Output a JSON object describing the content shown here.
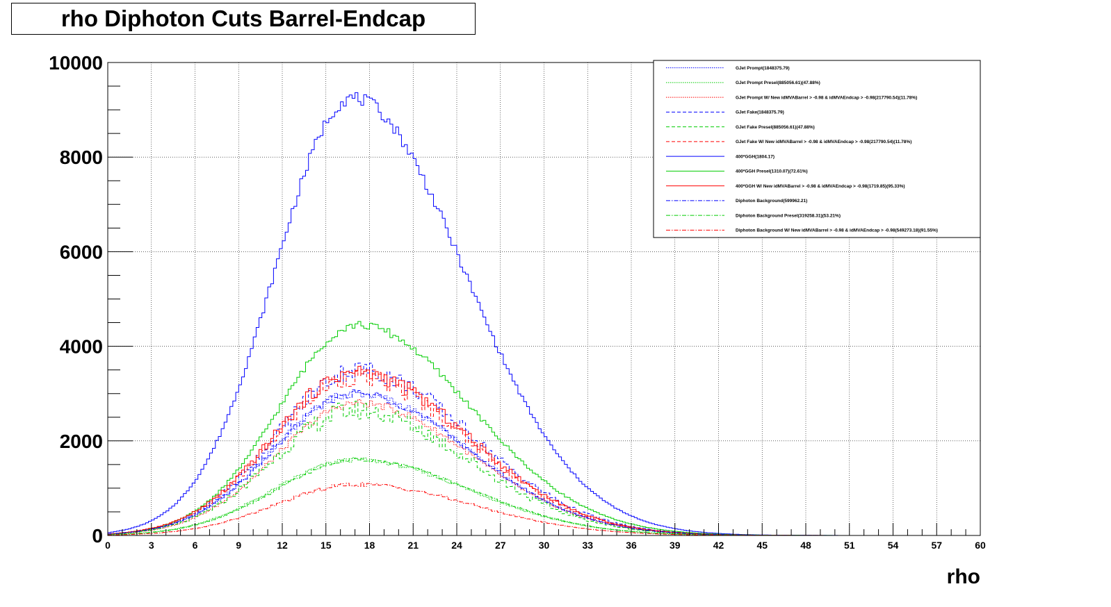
{
  "chart_data": {
    "type": "line",
    "title": "rho Diphoton Cuts Barrel-Endcap",
    "xlabel": "rho",
    "ylabel": "",
    "xlim": [
      0,
      60
    ],
    "ylim": [
      0,
      10000
    ],
    "x_ticks": [
      "0",
      "3",
      "6",
      "9",
      "12",
      "15",
      "18",
      "21",
      "24",
      "27",
      "30",
      "33",
      "36",
      "39",
      "42",
      "45",
      "48",
      "51",
      "54",
      "57",
      "60"
    ],
    "y_ticks": [
      "0",
      "2000",
      "4000",
      "6000",
      "8000",
      "10000"
    ],
    "grid": true,
    "legend_position": "top-right",
    "series": [
      {
        "name": "GJet Prompt(1848375.79)",
        "color": "#0000ff",
        "style": "dotted",
        "peak": 3000,
        "mean": 17.0,
        "sigma_left": 5.6,
        "sigma_right": 7.8,
        "noise": 0.03
      },
      {
        "name": "GJet Prompt Presel(885056.61)(47.88%)",
        "color": "#00cc00",
        "style": "dotted",
        "peak": 1600,
        "mean": 17.0,
        "sigma_left": 5.6,
        "sigma_right": 7.8,
        "noise": 0.03
      },
      {
        "name": "GJet Prompt W/ New idMVABarrel > -0.98 & idMVAEndcap > -0.98(217790.54)(11.78%)",
        "color": "#ff0000",
        "style": "dotted",
        "peak": 2800,
        "mean": 17.2,
        "sigma_left": 5.6,
        "sigma_right": 7.8,
        "noise": 0.03
      },
      {
        "name": "GJet Fake(1848375.79)",
        "color": "#0000ff",
        "style": "dashed",
        "peak": 3500,
        "mean": 17.2,
        "sigma_left": 5.6,
        "sigma_right": 7.8,
        "noise": 0.06
      },
      {
        "name": "GJet Fake Presel(885056.61)(47.88%)",
        "color": "#00cc00",
        "style": "dashed",
        "peak": 2650,
        "mean": 17.0,
        "sigma_left": 5.6,
        "sigma_right": 7.8,
        "noise": 0.08
      },
      {
        "name": "GJet Fake W/ New idMVABarrel > -0.98 & idMVAEndcap > -0.98(217790.54)(11.78%)",
        "color": "#ff0000",
        "style": "dashed",
        "peak": 3350,
        "mean": 17.0,
        "sigma_left": 5.6,
        "sigma_right": 7.8,
        "noise": 0.06
      },
      {
        "name": "400*GGH(1804.17)",
        "color": "#0000ff",
        "style": "solid",
        "peak": 9250,
        "mean": 16.8,
        "sigma_left": 5.3,
        "sigma_right": 7.7,
        "noise": 0.015
      },
      {
        "name": "400*GGH Presel(1310.07)(72.61%)",
        "color": "#00cc00",
        "style": "solid",
        "peak": 4450,
        "mean": 17.2,
        "sigma_left": 5.4,
        "sigma_right": 7.8,
        "noise": 0.02
      },
      {
        "name": "400*GGH W/ New idMVABarrel > -0.98 & idMVAEndcap > -0.98(1719.85)(95.33%)",
        "color": "#ff0000",
        "style": "solid",
        "peak": 3450,
        "mean": 17.0,
        "sigma_left": 5.6,
        "sigma_right": 7.8,
        "noise": 0.05
      },
      {
        "name": "Diphoton Background(599962.21)",
        "color": "#0000ff",
        "style": "dashdot",
        "peak": 3000,
        "mean": 17.0,
        "sigma_left": 5.6,
        "sigma_right": 7.8,
        "noise": 0.03
      },
      {
        "name": "Diphoton Background Presel(319258.31)(53.21%)",
        "color": "#00cc00",
        "style": "dashdot",
        "peak": 1600,
        "mean": 17.2,
        "sigma_left": 5.6,
        "sigma_right": 7.8,
        "noise": 0.02
      },
      {
        "name": "Diphoton Background W/ New idMVABarrel > -0.98 & idMVAEndcap > -0.98(549273.18)(91.55%)",
        "color": "#ff0000",
        "style": "dashdot",
        "peak": 1080,
        "mean": 17.2,
        "sigma_left": 5.6,
        "sigma_right": 7.8,
        "noise": 0.04
      }
    ]
  }
}
